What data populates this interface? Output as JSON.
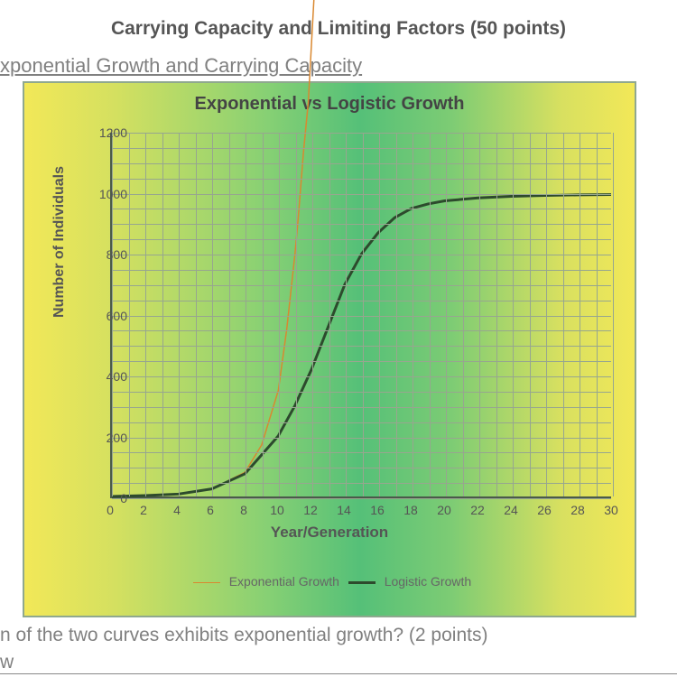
{
  "title": "Carrying Capacity and Limiting Factors (50 points)",
  "section_heading": "xponential Growth and Carrying Capacity",
  "question_text": "n of the two curves exhibits exponential growth? (2 points)",
  "answer_fragment": "w",
  "chart": {
    "type": "line",
    "title": "Exponential vs Logistic Growth",
    "xlabel": "Year/Generation",
    "ylabel": "Number of Individuals",
    "xlim": [
      0,
      30
    ],
    "ylim": [
      0,
      1200
    ],
    "xtick_step": 2,
    "ytick_step": 200,
    "minor_grid_x": 1,
    "minor_grid_y": 50,
    "background_gradient": [
      "#f2e858",
      "#86d074",
      "#55c078",
      "#86d074",
      "#f2e858"
    ],
    "grid_color": "#97a68f",
    "axis_color": "#4a5a4a",
    "series": [
      {
        "name": "Exponential Growth",
        "color": "#d98830",
        "line_width": 1.5,
        "x": [
          0,
          2,
          4,
          6,
          8,
          9,
          10,
          10.5,
          11,
          11.2,
          11.5,
          11.8,
          12,
          12.2,
          12.4
        ],
        "y": [
          0,
          3,
          8,
          25,
          80,
          170,
          350,
          550,
          800,
          920,
          1130,
          1300,
          1500,
          1700,
          1900
        ]
      },
      {
        "name": "Logistic Growth",
        "color": "#2d4a2d",
        "line_width": 3,
        "x": [
          0,
          2,
          4,
          6,
          8,
          10,
          11,
          12,
          13,
          14,
          15,
          16,
          17,
          18,
          19,
          20,
          22,
          24,
          26,
          28,
          30
        ],
        "y": [
          0,
          3,
          8,
          25,
          75,
          200,
          300,
          420,
          560,
          700,
          800,
          870,
          920,
          950,
          965,
          975,
          985,
          990,
          993,
          995,
          996
        ]
      }
    ],
    "legend": {
      "items": [
        "Exponential Growth",
        "Logistic Growth"
      ]
    }
  }
}
